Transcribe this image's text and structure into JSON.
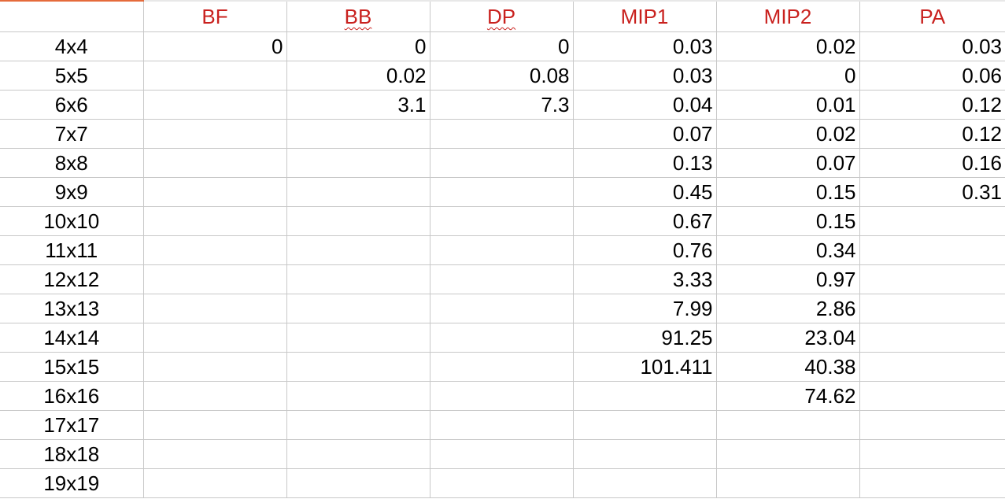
{
  "accent_colors": {
    "header_text": "#c9211e",
    "selection_edge": "#e56b3c",
    "grid_line": "#c8c8c8"
  },
  "columns": [
    "BF",
    "BB",
    "DP",
    "MIP1",
    "MIP2",
    "PA"
  ],
  "rows": [
    {
      "label": "4x4",
      "cells": [
        "0",
        "0",
        "0",
        "0.03",
        "0.02",
        "0.03"
      ]
    },
    {
      "label": "5x5",
      "cells": [
        "",
        "0.02",
        "0.08",
        "0.03",
        "0",
        "0.06"
      ]
    },
    {
      "label": "6x6",
      "cells": [
        "",
        "3.1",
        "7.3",
        "0.04",
        "0.01",
        "0.12"
      ]
    },
    {
      "label": "7x7",
      "cells": [
        "",
        "",
        "",
        "0.07",
        "0.02",
        "0.12"
      ]
    },
    {
      "label": "8x8",
      "cells": [
        "",
        "",
        "",
        "0.13",
        "0.07",
        "0.16"
      ]
    },
    {
      "label": "9x9",
      "cells": [
        "",
        "",
        "",
        "0.45",
        "0.15",
        "0.31"
      ]
    },
    {
      "label": "10x10",
      "cells": [
        "",
        "",
        "",
        "0.67",
        "0.15",
        ""
      ]
    },
    {
      "label": "11x11",
      "cells": [
        "",
        "",
        "",
        "0.76",
        "0.34",
        ""
      ]
    },
    {
      "label": "12x12",
      "cells": [
        "",
        "",
        "",
        "3.33",
        "0.97",
        ""
      ]
    },
    {
      "label": "13x13",
      "cells": [
        "",
        "",
        "",
        "7.99",
        "2.86",
        ""
      ]
    },
    {
      "label": "14x14",
      "cells": [
        "",
        "",
        "",
        "91.25",
        "23.04",
        ""
      ]
    },
    {
      "label": "15x15",
      "cells": [
        "",
        "",
        "",
        "101.411",
        "40.38",
        ""
      ]
    },
    {
      "label": "16x16",
      "cells": [
        "",
        "",
        "",
        "",
        "74.62",
        ""
      ]
    },
    {
      "label": "17x17",
      "cells": [
        "",
        "",
        "",
        "",
        "",
        ""
      ]
    },
    {
      "label": "18x18",
      "cells": [
        "",
        "",
        "",
        "",
        "",
        ""
      ]
    },
    {
      "label": "19x19",
      "cells": [
        "",
        "",
        "",
        "",
        "",
        ""
      ]
    }
  ]
}
